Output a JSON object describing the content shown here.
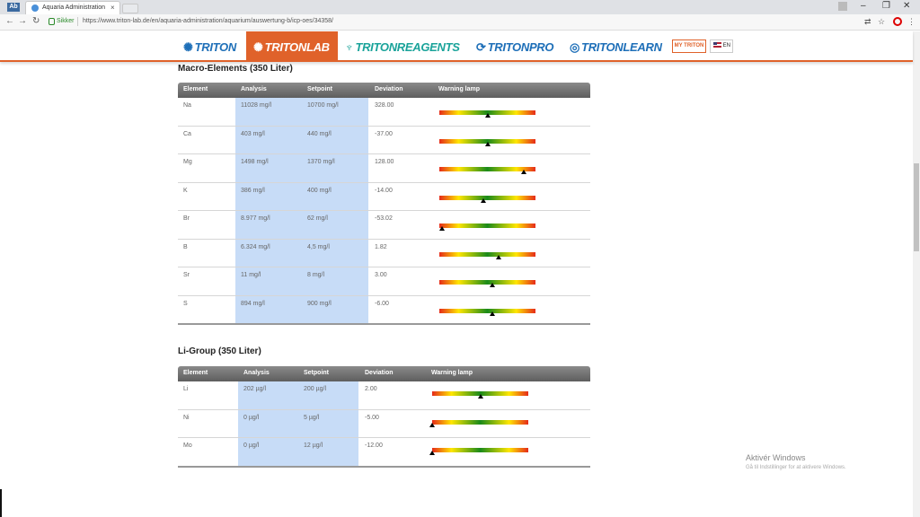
{
  "browser": {
    "app_badge": "Ab",
    "tab_title": "Aquaria Administration",
    "secure_label": "Sikker",
    "url": "https://www.triton-lab.de/en/aquaria-administration/aquarium/auswertung-b/icp-oes/34358/"
  },
  "site_nav": {
    "brands": [
      "TRITON",
      "TRITONLAB",
      "TRITONREAGENTS",
      "TRITONPRO",
      "TRITONLEARN"
    ],
    "my_triton": "MY TRITON",
    "lang": "EN"
  },
  "columns": {
    "element": "Element",
    "analysis": "Analysis",
    "setpoint": "Setpoint",
    "deviation": "Deviation",
    "lamp": "Warning lamp"
  },
  "macro": {
    "title": "Macro-Elements (350 Liter)",
    "rows": [
      {
        "element": "Na",
        "analysis": "11028 mg/l",
        "setpoint": "10700 mg/l",
        "deviation": "328.00",
        "lamp_level": 0.5
      },
      {
        "element": "Ca",
        "analysis": "403 mg/l",
        "setpoint": "440 mg/l",
        "deviation": "-37.00",
        "lamp_level": 0.5
      },
      {
        "element": "Mg",
        "analysis": "1498 mg/l",
        "setpoint": "1370 mg/l",
        "deviation": "128.00",
        "lamp_level": 0.88
      },
      {
        "element": "K",
        "analysis": "386 mg/l",
        "setpoint": "400 mg/l",
        "deviation": "-14.00",
        "lamp_level": 0.46
      },
      {
        "element": "Br",
        "analysis": "8.977 mg/l",
        "setpoint": "62 mg/l",
        "deviation": "-53.02",
        "lamp_level": 0.03
      },
      {
        "element": "B",
        "analysis": "6.324 mg/l",
        "setpoint": "4,5 mg/l",
        "deviation": "1.82",
        "lamp_level": 0.62
      },
      {
        "element": "Sr",
        "analysis": "11 mg/l",
        "setpoint": "8 mg/l",
        "deviation": "3.00",
        "lamp_level": 0.55
      },
      {
        "element": "S",
        "analysis": "894 mg/l",
        "setpoint": "900 mg/l",
        "deviation": "-6.00",
        "lamp_level": 0.55
      }
    ]
  },
  "li": {
    "title": "Li-Group (350 Liter)",
    "rows": [
      {
        "element": "Li",
        "analysis": "202 µg/l",
        "setpoint": "200 µg/l",
        "deviation": "2.00",
        "lamp_level": 0.5
      },
      {
        "element": "Ni",
        "analysis": "0 µg/l",
        "setpoint": "5 µg/l",
        "deviation": "-5.00",
        "lamp_level": 0.0
      },
      {
        "element": "Mo",
        "analysis": "0 µg/l",
        "setpoint": "12 µg/l",
        "deviation": "-12.00",
        "lamp_level": 0.0
      }
    ]
  },
  "os_watermark": {
    "line1": "Aktivér Windows",
    "line2": "Gå til Indstillinger for at aktivere Windows."
  },
  "colors": {
    "accent": "#e0622a",
    "analysis_band": "#c7dcf7",
    "brand_blue": "#1e6fb8",
    "brand_teal": "#1aa39a"
  }
}
